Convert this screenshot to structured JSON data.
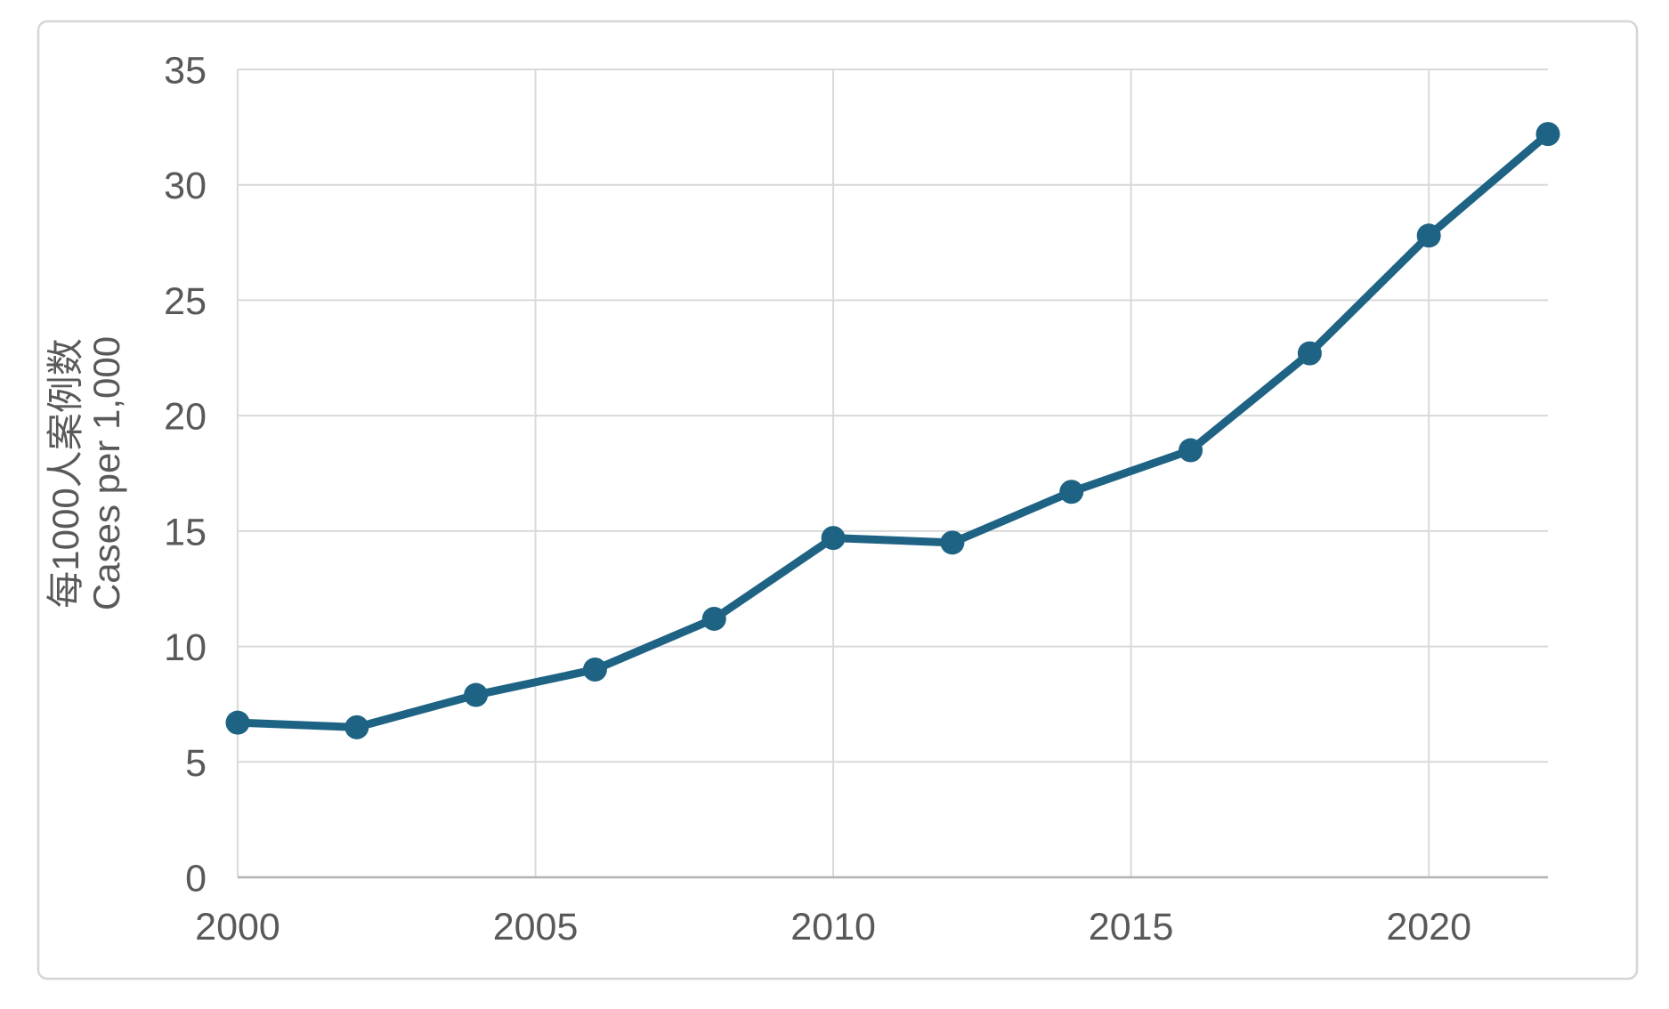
{
  "chart_data": {
    "type": "line",
    "title": "",
    "xlabel": "",
    "ylabel_line1": "每1000人案例数",
    "ylabel_line2": "Cases per 1,000",
    "x": [
      2000,
      2002,
      2004,
      2006,
      2008,
      2010,
      2012,
      2014,
      2016,
      2018,
      2020,
      2022
    ],
    "series": [
      {
        "name": "Cases per 1,000",
        "values": [
          6.7,
          6.5,
          7.9,
          9.0,
          11.2,
          14.7,
          14.5,
          16.7,
          18.5,
          22.7,
          27.8,
          32.2
        ]
      }
    ],
    "x_ticks": [
      2000,
      2005,
      2010,
      2015,
      2020
    ],
    "y_ticks": [
      0,
      5,
      10,
      15,
      20,
      25,
      30,
      35
    ],
    "xlim": [
      2000,
      2022
    ],
    "ylim": [
      0,
      35
    ],
    "grid": true,
    "legend_position": "none"
  },
  "colors": {
    "line": "#1e6384",
    "marker": "#1e6384",
    "gridline": "#d9d9d9",
    "axis_line": "#b3b3b3",
    "tick_text": "#595959",
    "axis_title_text": "#595959",
    "card_border": "#d6d6d6",
    "background": "#ffffff"
  }
}
